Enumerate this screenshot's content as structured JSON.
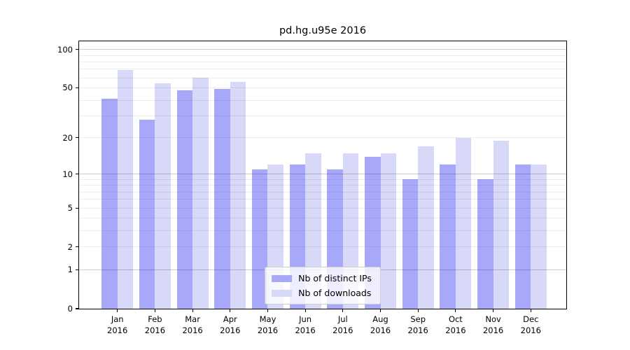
{
  "chart_data": {
    "type": "bar",
    "title": "pd.hg.u95e 2016",
    "y_scale": "log10(1+x)",
    "grid_on": true,
    "legend_position": "lower center",
    "categories": [
      "Jan",
      "Feb",
      "Mar",
      "Apr",
      "May",
      "Jun",
      "Jul",
      "Aug",
      "Sep",
      "Oct",
      "Nov",
      "Dec"
    ],
    "x_tick_year": "2016",
    "series": [
      {
        "name": "Nb of distinct IPs",
        "color": "#a8a8fa",
        "values": [
          41,
          28,
          48,
          49,
          11,
          12,
          11,
          14,
          9,
          12,
          9,
          12
        ]
      },
      {
        "name": "Nb of downloads",
        "color": "#d8d8f8",
        "values": [
          69,
          54,
          60,
          56,
          12,
          15,
          15,
          15,
          17,
          20,
          19,
          12
        ]
      }
    ],
    "yticks": [
      0,
      1,
      2,
      5,
      10,
      20,
      50,
      100
    ],
    "ylim": [
      0,
      116
    ],
    "xlabel": "",
    "ylabel": "",
    "grid": {
      "minor_values": [
        2,
        3,
        4,
        5,
        6,
        7,
        8,
        9,
        20,
        30,
        40,
        50,
        60,
        70,
        80,
        90
      ],
      "major_values": [
        1,
        10,
        100
      ]
    },
    "colors": {
      "axis": "#000000",
      "grid_minor": "#ececec",
      "grid_major": "#c9c9c9",
      "legend_border": "#cccccc"
    }
  }
}
